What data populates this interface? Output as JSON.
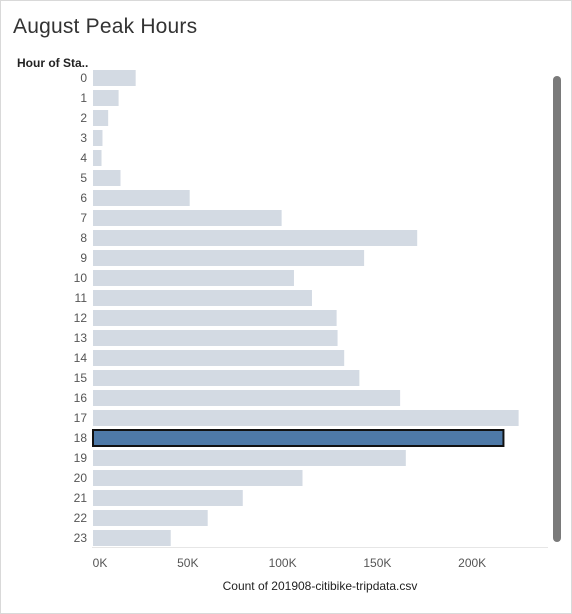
{
  "title": "August Peak Hours",
  "row_header": "Hour of Sta..",
  "colors": {
    "bar": "#d3dae3",
    "highlight_fill": "#4e79a7",
    "highlight_stroke": "#111111",
    "tick_text": "#555555"
  },
  "chart_data": {
    "type": "bar",
    "orientation": "horizontal",
    "categories": [
      "0",
      "1",
      "2",
      "3",
      "4",
      "5",
      "6",
      "7",
      "8",
      "9",
      "10",
      "11",
      "12",
      "13",
      "14",
      "15",
      "16",
      "17",
      "18",
      "19",
      "20",
      "21",
      "22",
      "23"
    ],
    "values": [
      22500,
      13500,
      8000,
      5000,
      4500,
      14500,
      51000,
      99500,
      171000,
      143000,
      106000,
      115500,
      128500,
      129000,
      132500,
      140500,
      162000,
      224500,
      216500,
      165000,
      110500,
      79000,
      60500,
      41000
    ],
    "xlabel": "Count of 201908-citibike-tripdata.csv",
    "ylabel": "Hour of Sta..",
    "xlim": [
      0,
      240000
    ],
    "x_ticks": [
      "0K",
      "50K",
      "100K",
      "150K",
      "200K"
    ],
    "x_tick_values": [
      0,
      50000,
      100000,
      150000,
      200000
    ],
    "highlighted_category": "18",
    "grid": false
  }
}
